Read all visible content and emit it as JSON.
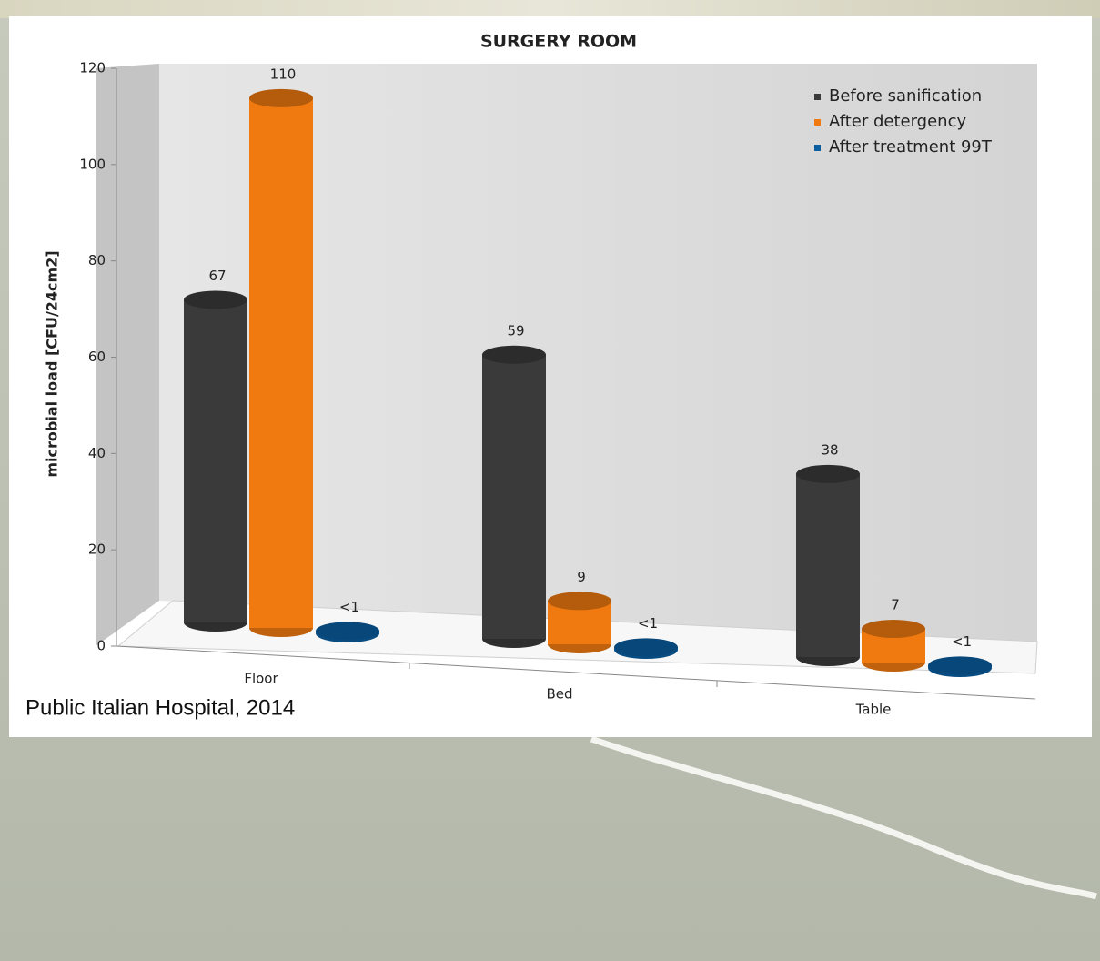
{
  "chart_data": {
    "type": "bar3d",
    "title": "SURGERY ROOM",
    "y_label": "microbial load [CFU/24cm2]",
    "annotation": "Public Italian Hospital, 2014",
    "categories": [
      "Floor",
      "Bed",
      "Table"
    ],
    "series": [
      {
        "name": "Before sanification",
        "color": "#3a3a3a",
        "values": [
          67,
          59,
          38
        ]
      },
      {
        "name": "After detergency",
        "color": "#f07a10",
        "values": [
          110,
          9,
          7
        ]
      },
      {
        "name": "After treatment 99T",
        "color": "#0a5fa3",
        "values": [
          0.5,
          0.5,
          0.5
        ],
        "value_labels": [
          "<1",
          "<1",
          "<1"
        ]
      }
    ],
    "ylim": [
      0,
      120
    ],
    "yticks": [
      0,
      20,
      40,
      60,
      80,
      100,
      120
    ],
    "legend": "top-right"
  }
}
